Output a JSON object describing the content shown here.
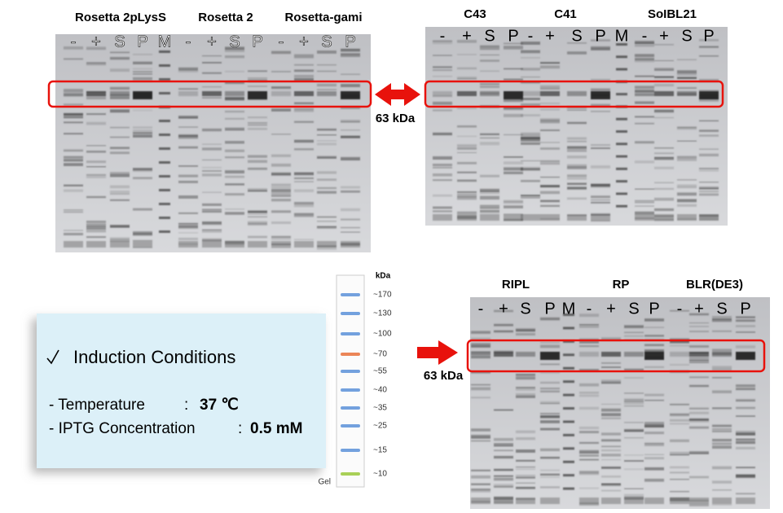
{
  "gels": [
    {
      "strains": [
        "Rosetta 2pLysS",
        "Rosetta 2",
        "Rosetta-gami"
      ],
      "lanes": [
        "-",
        "+",
        "S",
        "P",
        "M",
        "-",
        "+",
        "S",
        "P",
        "-",
        "+",
        "S",
        "P"
      ]
    },
    {
      "strains": [
        "C43",
        "C41",
        "SoIBL21"
      ],
      "lanes": [
        "-",
        "+",
        "S",
        "P",
        "-",
        "+",
        "S",
        "P",
        "M",
        "-",
        "+",
        "S",
        "P"
      ]
    },
    {
      "strains": [
        "RIPL",
        "RP",
        "BLR(DE3)"
      ],
      "lanes": [
        "-",
        "+",
        "S",
        "P",
        "M",
        "-",
        "+",
        "S",
        "P",
        "-",
        "+",
        "S",
        "P"
      ]
    }
  ],
  "top_marker_label": "63 kDa",
  "bottom_marker_label": "63 kDa",
  "conditions": {
    "title": "Induction Conditions",
    "rows": [
      {
        "label": "- Temperature",
        "sep": ":",
        "value": "37 ℃"
      },
      {
        "label": "- IPTG Concentration",
        "sep": ":",
        "value": "0.5 mM"
      }
    ]
  },
  "ladder": {
    "unit": "kDa",
    "marks": [
      "~170",
      "~130",
      "~100",
      "~70",
      "~55",
      "~40",
      "~35",
      "~25",
      "~15",
      "~10"
    ],
    "gel_label": "Gel"
  }
}
